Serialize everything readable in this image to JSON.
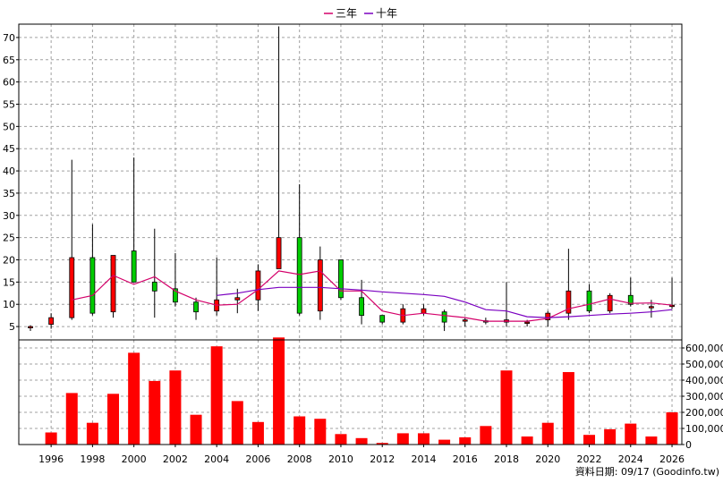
{
  "chart_data": {
    "type": "candlestick",
    "legend": [
      {
        "label": "三年",
        "color": "#d4006a"
      },
      {
        "label": "十年",
        "color": "#7a00c0"
      }
    ],
    "footer": "資料日期: 09/17 (Goodinfo.tw)",
    "price_axis": {
      "min": 2,
      "max": 73,
      "ticks": [
        5,
        10,
        15,
        20,
        25,
        30,
        35,
        40,
        45,
        50,
        55,
        60,
        65,
        70
      ]
    },
    "volume_axis": {
      "min": 0,
      "max": 650000,
      "ticks": [
        0,
        100000,
        200000,
        300000,
        400000,
        500000,
        600000
      ],
      "tick_labels": [
        "0",
        "100,000",
        "200,000",
        "300,000",
        "400,000",
        "500,000",
        "600,000"
      ]
    },
    "x_labels": [
      "1996",
      "1998",
      "2000",
      "2002",
      "2004",
      "2006",
      "2008",
      "2010",
      "2012",
      "2014",
      "2016",
      "2018",
      "2020",
      "2022",
      "2024",
      "2026"
    ],
    "years": [
      1995,
      1996,
      1997,
      1998,
      1999,
      2000,
      2001,
      2002,
      2003,
      2004,
      2005,
      2006,
      2007,
      2008,
      2009,
      2010,
      2011,
      2012,
      2013,
      2014,
      2015,
      2016,
      2017,
      2018,
      2019,
      2020,
      2021,
      2022,
      2023,
      2024,
      2025,
      2026
    ],
    "candles": [
      {
        "year": 1995,
        "open": 5.0,
        "high": 5.3,
        "low": 4.0,
        "close": 5.0
      },
      {
        "year": 1996,
        "open": 5.5,
        "high": 8.0,
        "low": 4.5,
        "close": 7.0
      },
      {
        "year": 1997,
        "open": 7.0,
        "high": 42.5,
        "low": 6.5,
        "close": 20.5
      },
      {
        "year": 1998,
        "open": 20.5,
        "high": 28.0,
        "low": 7.5,
        "close": 8.0
      },
      {
        "year": 1999,
        "open": 8.3,
        "high": 21.0,
        "low": 7.0,
        "close": 21.0
      },
      {
        "year": 2000,
        "open": 22.0,
        "high": 43.0,
        "low": 15.0,
        "close": 15.0
      },
      {
        "year": 2001,
        "open": 15.0,
        "high": 27.0,
        "low": 7.0,
        "close": 13.0
      },
      {
        "year": 2002,
        "open": 13.5,
        "high": 21.5,
        "low": 9.5,
        "close": 10.5
      },
      {
        "year": 2003,
        "open": 10.5,
        "high": 11.5,
        "low": 6.5,
        "close": 8.3
      },
      {
        "year": 2004,
        "open": 8.5,
        "high": 20.5,
        "low": 7.5,
        "close": 11.0
      },
      {
        "year": 2005,
        "open": 11.0,
        "high": 13.5,
        "low": 8.0,
        "close": 11.5
      },
      {
        "year": 2006,
        "open": 11.0,
        "high": 19.0,
        "low": 8.5,
        "close": 17.5
      },
      {
        "year": 2007,
        "open": 18.0,
        "high": 72.5,
        "low": 18.0,
        "close": 25.0
      },
      {
        "year": 2008,
        "open": 25.0,
        "high": 37.0,
        "low": 7.5,
        "close": 8.0
      },
      {
        "year": 2009,
        "open": 8.5,
        "high": 23.0,
        "low": 6.5,
        "close": 20.0
      },
      {
        "year": 2010,
        "open": 20.0,
        "high": 20.0,
        "low": 11.0,
        "close": 11.5
      },
      {
        "year": 2011,
        "open": 11.5,
        "high": 15.5,
        "low": 5.5,
        "close": 7.5
      },
      {
        "year": 2012,
        "open": 7.5,
        "high": 7.5,
        "low": 5.5,
        "close": 6.0
      },
      {
        "year": 2013,
        "open": 6.0,
        "high": 10.0,
        "low": 5.5,
        "close": 9.0
      },
      {
        "year": 2014,
        "open": 8.0,
        "high": 10.0,
        "low": 7.5,
        "close": 9.0
      },
      {
        "year": 2015,
        "open": 8.3,
        "high": 8.8,
        "low": 4.0,
        "close": 6.0
      },
      {
        "year": 2016,
        "open": 6.5,
        "high": 7.0,
        "low": 5.0,
        "close": 6.5
      },
      {
        "year": 2017,
        "open": 6.3,
        "high": 7.0,
        "low": 5.5,
        "close": 6.0
      },
      {
        "year": 2018,
        "open": 6.0,
        "high": 15.0,
        "low": 5.0,
        "close": 6.5
      },
      {
        "year": 2019,
        "open": 6.0,
        "high": 6.5,
        "low": 5.0,
        "close": 6.0
      },
      {
        "year": 2020,
        "open": 6.5,
        "high": 8.5,
        "low": 5.0,
        "close": 8.0
      },
      {
        "year": 2021,
        "open": 8.0,
        "high": 22.5,
        "low": 6.5,
        "close": 13.0
      },
      {
        "year": 2022,
        "open": 13.0,
        "high": 14.5,
        "low": 8.0,
        "close": 8.5
      },
      {
        "year": 2023,
        "open": 8.5,
        "high": 12.5,
        "low": 8.0,
        "close": 12.0
      },
      {
        "year": 2024,
        "open": 12.0,
        "high": 16.0,
        "low": 9.5,
        "close": 10.0
      },
      {
        "year": 2025,
        "open": 9.5,
        "high": 11.0,
        "low": 7.0,
        "close": 9.5
      },
      {
        "year": 2026,
        "open": 9.5,
        "high": 16.0,
        "low": 9.0,
        "close": 9.8
      }
    ],
    "ma3": [
      {
        "year": 1997,
        "value": 11.0
      },
      {
        "year": 1998,
        "value": 12.0
      },
      {
        "year": 1999,
        "value": 16.5
      },
      {
        "year": 2000,
        "value": 14.5
      },
      {
        "year": 2001,
        "value": 16.2
      },
      {
        "year": 2002,
        "value": 13.0
      },
      {
        "year": 2003,
        "value": 11.0
      },
      {
        "year": 2004,
        "value": 9.8
      },
      {
        "year": 2005,
        "value": 10.0
      },
      {
        "year": 2006,
        "value": 13.3
      },
      {
        "year": 2007,
        "value": 17.5
      },
      {
        "year": 2008,
        "value": 16.7
      },
      {
        "year": 2009,
        "value": 17.5
      },
      {
        "year": 2010,
        "value": 13.0
      },
      {
        "year": 2011,
        "value": 13.0
      },
      {
        "year": 2012,
        "value": 8.5
      },
      {
        "year": 2013,
        "value": 7.5
      },
      {
        "year": 2014,
        "value": 8.0
      },
      {
        "year": 2015,
        "value": 7.5
      },
      {
        "year": 2016,
        "value": 7.0
      },
      {
        "year": 2017,
        "value": 6.2
      },
      {
        "year": 2018,
        "value": 6.2
      },
      {
        "year": 2019,
        "value": 6.2
      },
      {
        "year": 2020,
        "value": 6.8
      },
      {
        "year": 2021,
        "value": 9.0
      },
      {
        "year": 2022,
        "value": 10.0
      },
      {
        "year": 2023,
        "value": 11.2
      },
      {
        "year": 2024,
        "value": 10.2
      },
      {
        "year": 2025,
        "value": 10.3
      },
      {
        "year": 2026,
        "value": 9.8
      }
    ],
    "ma10": [
      {
        "year": 2004,
        "value": 12.0
      },
      {
        "year": 2005,
        "value": 12.5
      },
      {
        "year": 2006,
        "value": 13.3
      },
      {
        "year": 2007,
        "value": 13.8
      },
      {
        "year": 2008,
        "value": 13.8
      },
      {
        "year": 2009,
        "value": 13.8
      },
      {
        "year": 2010,
        "value": 13.5
      },
      {
        "year": 2011,
        "value": 13.2
      },
      {
        "year": 2012,
        "value": 12.8
      },
      {
        "year": 2013,
        "value": 12.5
      },
      {
        "year": 2014,
        "value": 12.2
      },
      {
        "year": 2015,
        "value": 11.8
      },
      {
        "year": 2016,
        "value": 10.5
      },
      {
        "year": 2017,
        "value": 8.8
      },
      {
        "year": 2018,
        "value": 8.5
      },
      {
        "year": 2019,
        "value": 7.2
      },
      {
        "year": 2020,
        "value": 7.0
      },
      {
        "year": 2021,
        "value": 7.2
      },
      {
        "year": 2022,
        "value": 7.5
      },
      {
        "year": 2023,
        "value": 7.8
      },
      {
        "year": 2024,
        "value": 8.0
      },
      {
        "year": 2025,
        "value": 8.3
      },
      {
        "year": 2026,
        "value": 8.8
      }
    ],
    "volume": [
      {
        "year": 1995,
        "value": 0
      },
      {
        "year": 1996,
        "value": 75000
      },
      {
        "year": 1997,
        "value": 320000
      },
      {
        "year": 1998,
        "value": 135000
      },
      {
        "year": 1999,
        "value": 315000
      },
      {
        "year": 2000,
        "value": 570000
      },
      {
        "year": 2001,
        "value": 395000
      },
      {
        "year": 2002,
        "value": 460000
      },
      {
        "year": 2003,
        "value": 185000
      },
      {
        "year": 2004,
        "value": 610000
      },
      {
        "year": 2005,
        "value": 270000
      },
      {
        "year": 2006,
        "value": 140000
      },
      {
        "year": 2007,
        "value": 665000
      },
      {
        "year": 2008,
        "value": 175000
      },
      {
        "year": 2009,
        "value": 160000
      },
      {
        "year": 2010,
        "value": 65000
      },
      {
        "year": 2011,
        "value": 40000
      },
      {
        "year": 2012,
        "value": 10000
      },
      {
        "year": 2013,
        "value": 70000
      },
      {
        "year": 2014,
        "value": 70000
      },
      {
        "year": 2015,
        "value": 30000
      },
      {
        "year": 2016,
        "value": 45000
      },
      {
        "year": 2017,
        "value": 115000
      },
      {
        "year": 2018,
        "value": 460000
      },
      {
        "year": 2019,
        "value": 50000
      },
      {
        "year": 2020,
        "value": 135000
      },
      {
        "year": 2021,
        "value": 450000
      },
      {
        "year": 2022,
        "value": 60000
      },
      {
        "year": 2023,
        "value": 95000
      },
      {
        "year": 2024,
        "value": 130000
      },
      {
        "year": 2025,
        "value": 50000
      },
      {
        "year": 2026,
        "value": 200000
      }
    ],
    "colors": {
      "up": "#ff0000",
      "down": "#00cc00",
      "volume": "#ff0000",
      "grid": "#a0a0a0",
      "wick": "#000000"
    }
  }
}
